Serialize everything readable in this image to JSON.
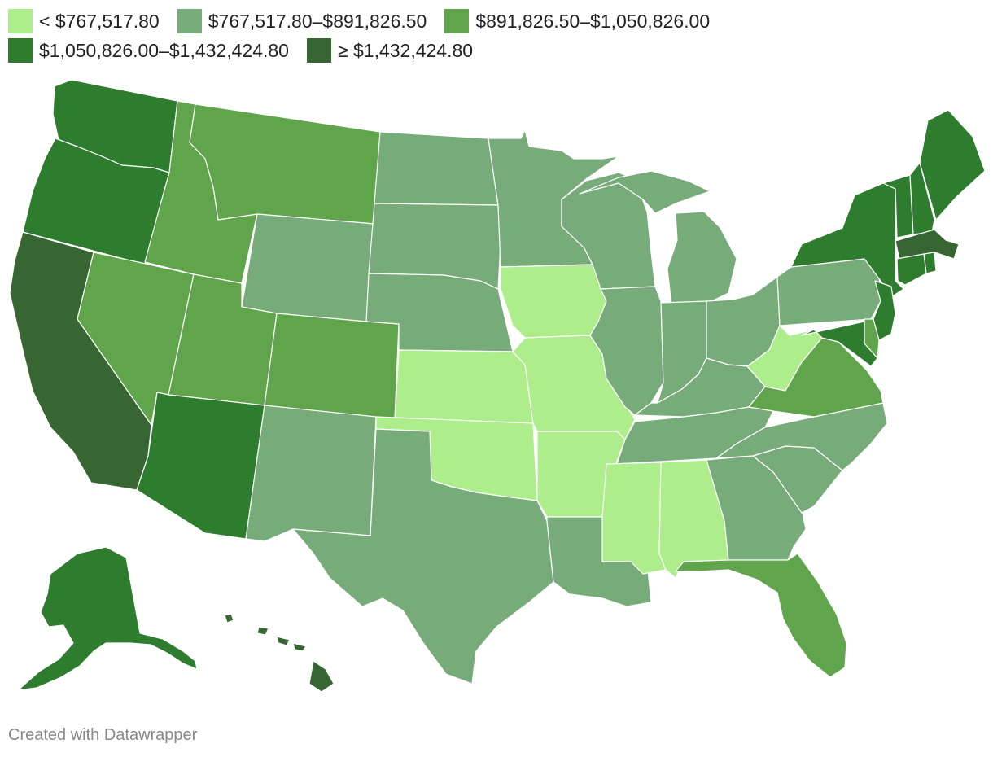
{
  "legend": {
    "bins": [
      {
        "label": "< $767,517.80",
        "color": "#aeed8c"
      },
      {
        "label": "$767,517.80–$891,826.50",
        "color": "#77ab7a"
      },
      {
        "label": "$891,826.50–$1,050,826.00",
        "color": "#60a54b"
      },
      {
        "label": "$1,050,826.00–$1,432,424.80",
        "color": "#2e7d2f"
      },
      {
        "label": "≥ $1,432,424.80",
        "color": "#376633"
      }
    ]
  },
  "map": {
    "type": "choropleth",
    "states": [
      {
        "id": "WA",
        "bin": 3
      },
      {
        "id": "OR",
        "bin": 3
      },
      {
        "id": "CA",
        "bin": 4
      },
      {
        "id": "ID",
        "bin": 2
      },
      {
        "id": "NV",
        "bin": 2
      },
      {
        "id": "MT",
        "bin": 2
      },
      {
        "id": "WY",
        "bin": 1
      },
      {
        "id": "UT",
        "bin": 2
      },
      {
        "id": "AZ",
        "bin": 3
      },
      {
        "id": "CO",
        "bin": 2
      },
      {
        "id": "NM",
        "bin": 1
      },
      {
        "id": "ND",
        "bin": 1
      },
      {
        "id": "SD",
        "bin": 1
      },
      {
        "id": "NE",
        "bin": 1
      },
      {
        "id": "KS",
        "bin": 0
      },
      {
        "id": "OK",
        "bin": 0
      },
      {
        "id": "TX",
        "bin": 1
      },
      {
        "id": "MN",
        "bin": 1
      },
      {
        "id": "IA",
        "bin": 0
      },
      {
        "id": "MO",
        "bin": 0
      },
      {
        "id": "AR",
        "bin": 0
      },
      {
        "id": "LA",
        "bin": 1
      },
      {
        "id": "WI",
        "bin": 1
      },
      {
        "id": "IL",
        "bin": 1
      },
      {
        "id": "MI",
        "bin": 1
      },
      {
        "id": "IN",
        "bin": 1
      },
      {
        "id": "OH",
        "bin": 1
      },
      {
        "id": "KY",
        "bin": 1
      },
      {
        "id": "TN",
        "bin": 1
      },
      {
        "id": "MS",
        "bin": 0
      },
      {
        "id": "AL",
        "bin": 0
      },
      {
        "id": "GA",
        "bin": 1
      },
      {
        "id": "FL",
        "bin": 2
      },
      {
        "id": "SC",
        "bin": 1
      },
      {
        "id": "NC",
        "bin": 1
      },
      {
        "id": "VA",
        "bin": 2
      },
      {
        "id": "WV",
        "bin": 0
      },
      {
        "id": "PA",
        "bin": 1
      },
      {
        "id": "NY",
        "bin": 3
      },
      {
        "id": "VT",
        "bin": 3
      },
      {
        "id": "NH",
        "bin": 3
      },
      {
        "id": "ME",
        "bin": 3
      },
      {
        "id": "MA",
        "bin": 4
      },
      {
        "id": "RI",
        "bin": 3
      },
      {
        "id": "CT",
        "bin": 3
      },
      {
        "id": "NJ",
        "bin": 3
      },
      {
        "id": "DE",
        "bin": 2
      },
      {
        "id": "MD",
        "bin": 3
      },
      {
        "id": "AK",
        "bin": 3
      },
      {
        "id": "HI",
        "bin": 4
      }
    ]
  },
  "footer": {
    "credit": "Created with Datawrapper"
  }
}
